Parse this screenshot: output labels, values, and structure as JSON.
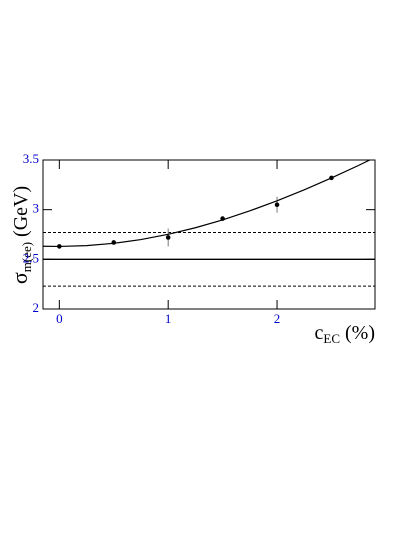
{
  "chart_data": {
    "type": "scatter",
    "ylabel": {
      "symbol": "σ",
      "sub": "m(ee)",
      "unit": "(GeV)"
    },
    "xlabel": {
      "symbol": "c",
      "sub": "EC",
      "unit": "(%)"
    },
    "xlim": [
      -0.15,
      2.9
    ],
    "xticks": [
      0,
      1,
      2
    ],
    "ylim": [
      2,
      3.5
    ],
    "yticks": [
      2,
      2.5,
      3,
      3.5
    ],
    "tick_label_color": "#0000cc",
    "series": [
      {
        "type": "scatter",
        "color": "#000000",
        "x": [
          0,
          0.5,
          1,
          1.5,
          2,
          2.5
        ],
        "values": [
          2.63,
          2.67,
          2.72,
          2.91,
          3.05,
          3.32
        ],
        "errors": [
          0.02,
          0.02,
          0.09,
          0.02,
          0.08,
          0.02
        ]
      },
      {
        "type": "line",
        "color": "#000000",
        "x": [
          -0.15,
          0,
          0.25,
          0.5,
          0.75,
          1,
          1.25,
          1.5,
          1.75,
          2,
          2.25,
          2.5,
          2.75,
          2.9
        ],
        "values": [
          2.632,
          2.63,
          2.638,
          2.661,
          2.699,
          2.752,
          2.818,
          2.897,
          2.988,
          3.089,
          3.2,
          3.319,
          3.446,
          3.526
        ]
      }
    ],
    "hlines": [
      {
        "value": 2.5,
        "style": "solid"
      },
      {
        "value": 2.77,
        "style": "dashed"
      },
      {
        "value": 2.23,
        "style": "dashed"
      }
    ]
  }
}
